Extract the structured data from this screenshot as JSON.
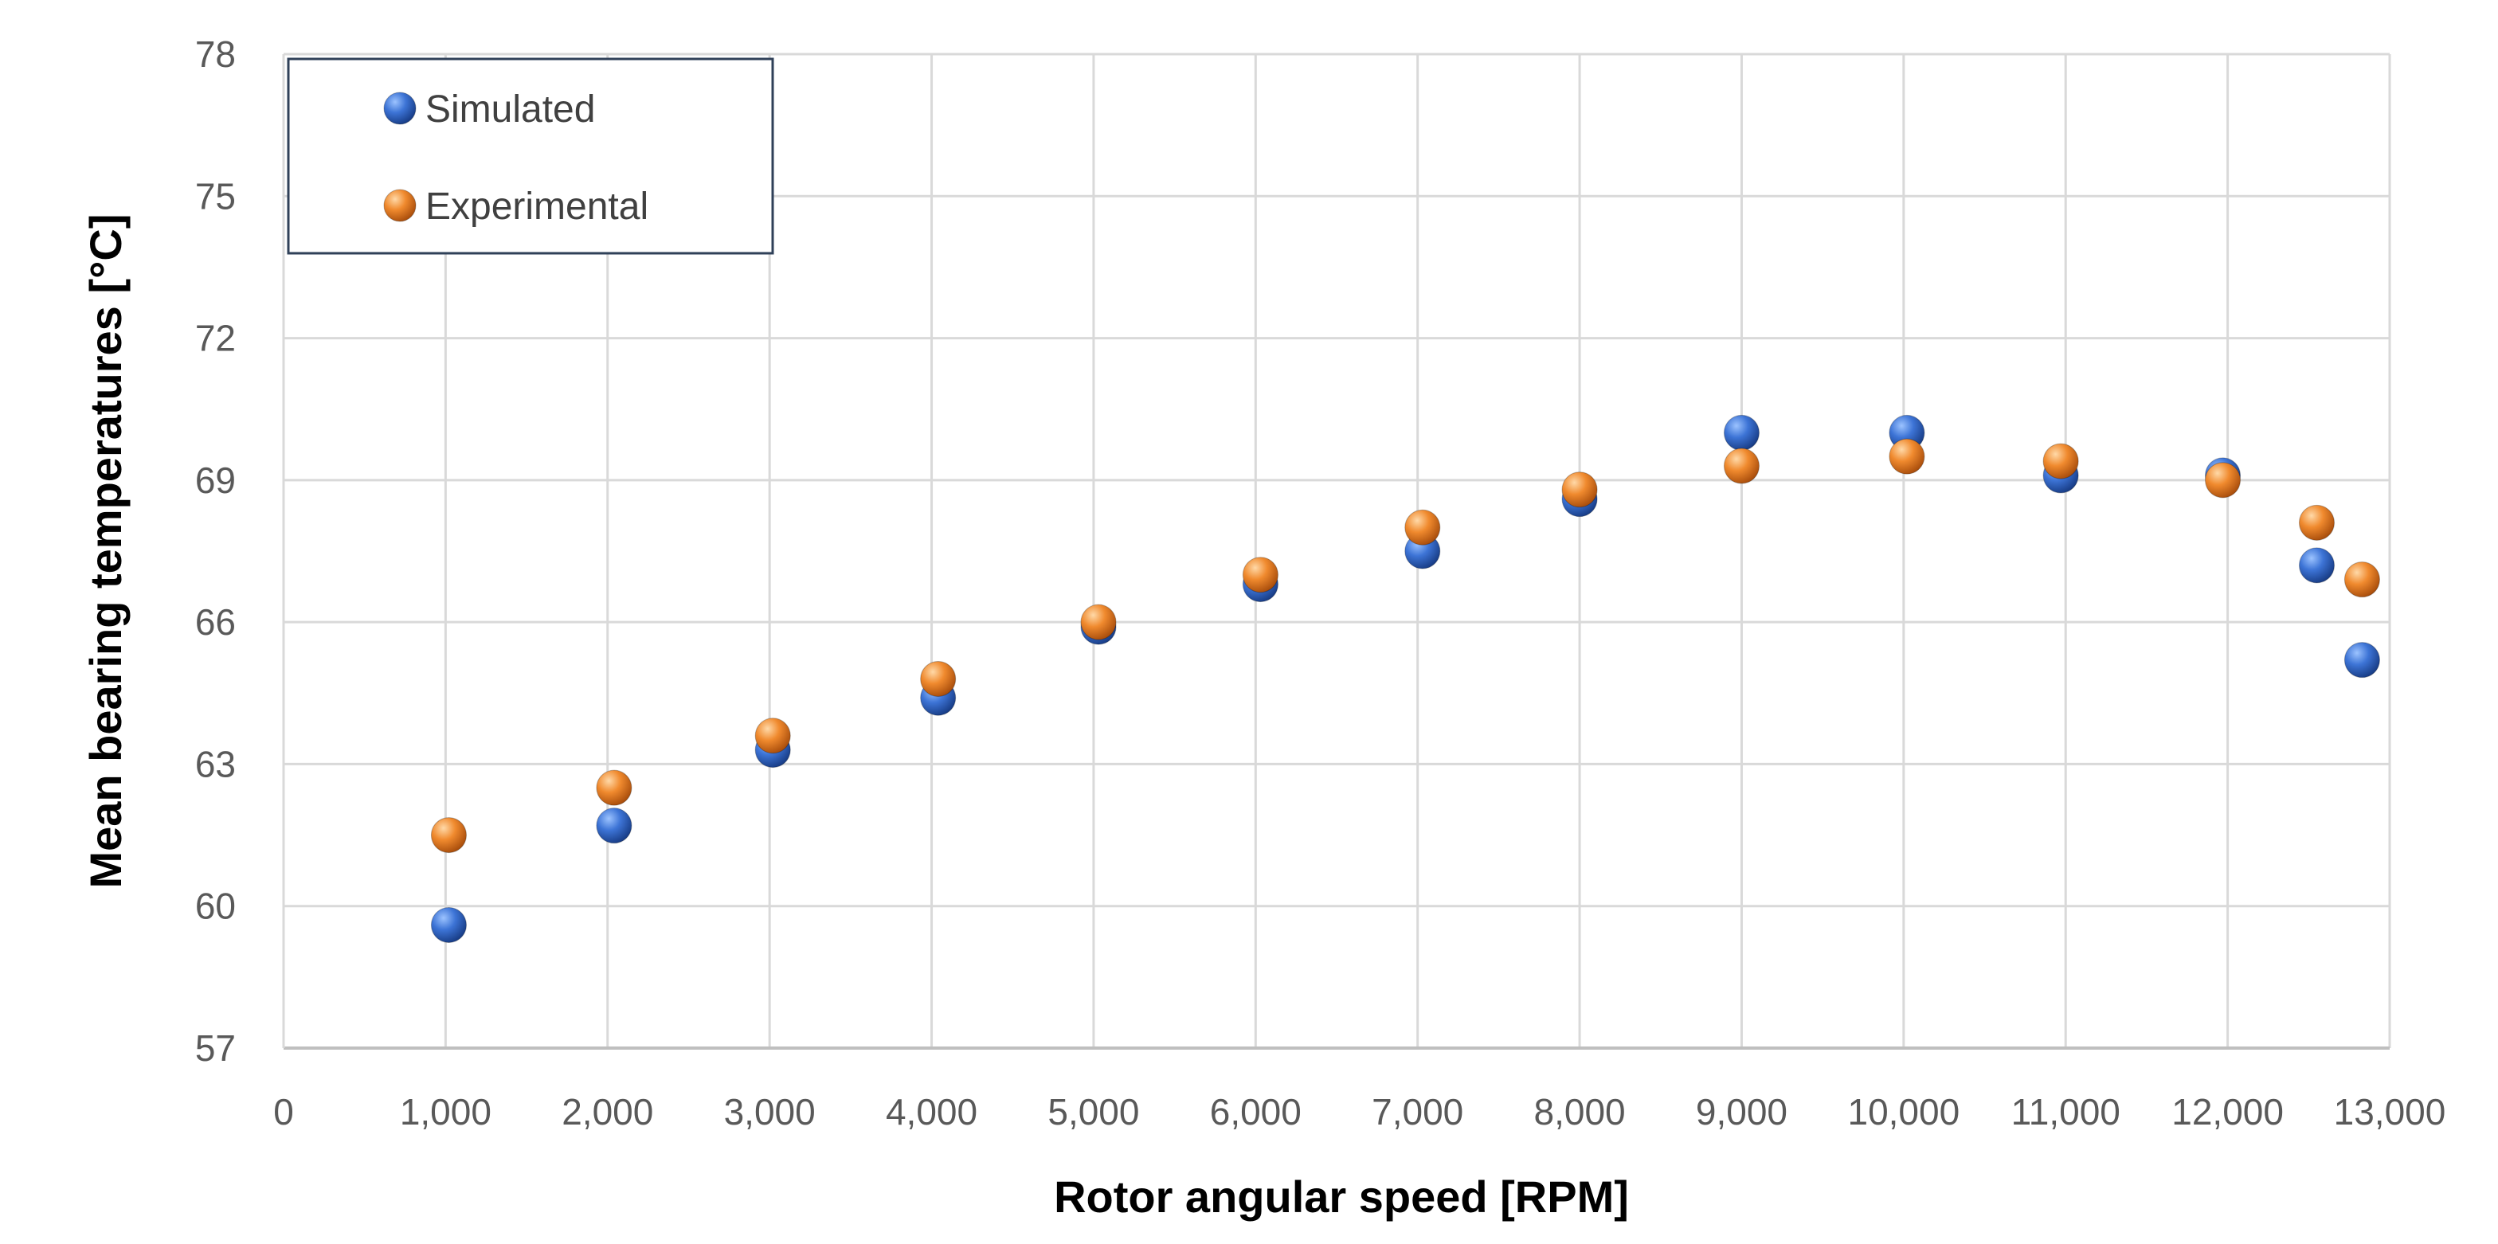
{
  "chart_data": {
    "type": "scatter",
    "title": "",
    "xlabel": "Rotor angular speed [RPM]",
    "ylabel": "Mean bearing temperatures [°C]",
    "xlim": [
      0,
      13000
    ],
    "ylim": [
      57,
      78
    ],
    "x_ticks": [
      0,
      1000,
      2000,
      3000,
      4000,
      5000,
      6000,
      7000,
      8000,
      9000,
      10000,
      11000,
      12000,
      13000
    ],
    "x_tick_labels": [
      "0",
      "1,000",
      "2,000",
      "3,000",
      "4,000",
      "5,000",
      "6,000",
      "7,000",
      "8,000",
      "9,000",
      "10,000",
      "11,000",
      "12,000",
      "13,000"
    ],
    "y_ticks": [
      57,
      60,
      63,
      66,
      69,
      72,
      75,
      78
    ],
    "y_tick_labels": [
      "57",
      "60",
      "63",
      "66",
      "69",
      "72",
      "75",
      "78"
    ],
    "grid": true,
    "legend_position": "top-left",
    "series": [
      {
        "name": "Simulated",
        "color": "#2E62C4",
        "points": [
          {
            "x": 1020,
            "y": 59.6
          },
          {
            "x": 2040,
            "y": 61.7
          },
          {
            "x": 3020,
            "y": 63.3
          },
          {
            "x": 4040,
            "y": 64.4
          },
          {
            "x": 5030,
            "y": 65.9
          },
          {
            "x": 6030,
            "y": 66.8
          },
          {
            "x": 7030,
            "y": 67.5
          },
          {
            "x": 8000,
            "y": 68.6
          },
          {
            "x": 9000,
            "y": 70.0
          },
          {
            "x": 10020,
            "y": 70.0
          },
          {
            "x": 10970,
            "y": 69.1
          },
          {
            "x": 11970,
            "y": 69.1
          },
          {
            "x": 12550,
            "y": 67.2
          },
          {
            "x": 12830,
            "y": 65.2
          }
        ]
      },
      {
        "name": "Experimental",
        "color": "#ED7D31",
        "points": [
          {
            "x": 1020,
            "y": 61.5
          },
          {
            "x": 2040,
            "y": 62.5
          },
          {
            "x": 3020,
            "y": 63.6
          },
          {
            "x": 4040,
            "y": 64.8
          },
          {
            "x": 5030,
            "y": 66.0
          },
          {
            "x": 6030,
            "y": 67.0
          },
          {
            "x": 7030,
            "y": 68.0
          },
          {
            "x": 8000,
            "y": 68.8
          },
          {
            "x": 9000,
            "y": 69.3
          },
          {
            "x": 10020,
            "y": 69.5
          },
          {
            "x": 10970,
            "y": 69.4
          },
          {
            "x": 11970,
            "y": 69.0
          },
          {
            "x": 12550,
            "y": 68.1
          },
          {
            "x": 12830,
            "y": 66.9
          }
        ]
      }
    ]
  }
}
